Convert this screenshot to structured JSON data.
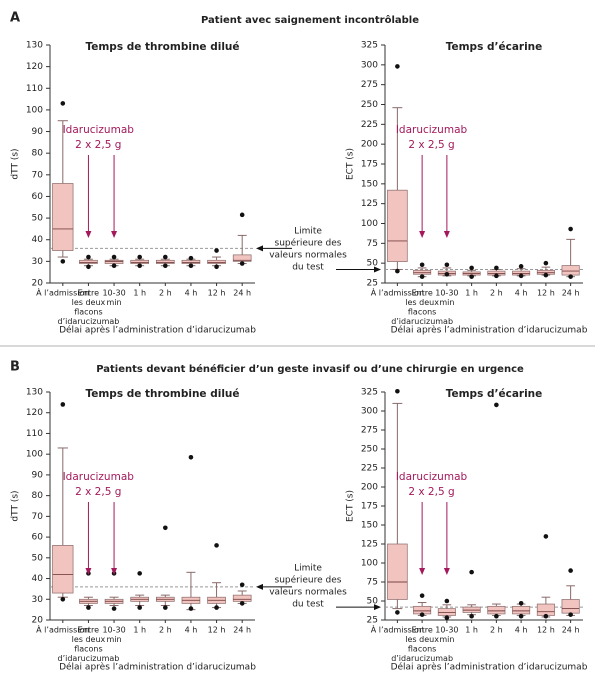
{
  "panels": [
    {
      "label": "A",
      "title": "Patient avec saignement incontrôlable",
      "note": [
        "Limite",
        "supérieure des",
        "valeurs normales",
        "du test"
      ]
    },
    {
      "label": "B",
      "title": "Patients devant bénéficier d’un geste invasif ou d’une chirurgie en urgence",
      "note": [
        "Limite",
        "supérieure des",
        "valeurs normales",
        "du test"
      ]
    }
  ],
  "chart_data": [
    {
      "type": "box",
      "title": "Temps de thrombine dilué",
      "ylabel": "dTT (s)",
      "xlabel": "Délai après l’administration d’idarucizumab",
      "annotation": [
        "Idarucizumab",
        "2 x 2,5 g"
      ],
      "categories": [
        [
          "À l’admission"
        ],
        [
          "Entre",
          "les deux",
          "flacons",
          "d’idarucizumab"
        ],
        [
          "10-30",
          "min"
        ],
        [
          "1 h"
        ],
        [
          "2 h"
        ],
        [
          "4 h"
        ],
        [
          "12 h"
        ],
        [
          "24 h"
        ]
      ],
      "whislo": [
        32,
        28,
        28,
        28,
        28,
        28,
        28,
        29
      ],
      "q1": [
        35,
        29,
        29,
        29,
        29,
        29,
        29,
        30
      ],
      "med": [
        45,
        29.5,
        30,
        29.5,
        29.5,
        29.5,
        29.5,
        30.5
      ],
      "q3": [
        66,
        30.5,
        30.5,
        30.5,
        30.5,
        30.5,
        30.5,
        33
      ],
      "whishi": [
        95,
        31,
        31,
        31,
        31,
        31,
        32,
        42
      ],
      "outliers": [
        [
          103,
          30
        ],
        [
          32,
          27.5
        ],
        [
          32,
          28
        ],
        [
          32,
          28
        ],
        [
          32,
          28
        ],
        [
          31.5,
          28
        ],
        [
          35,
          27.5
        ],
        [
          51.5,
          29
        ]
      ],
      "ylim": [
        20,
        130
      ],
      "yticks": [
        20,
        30,
        40,
        50,
        60,
        70,
        80,
        90,
        100,
        110,
        120,
        130
      ],
      "reference_line": 36,
      "color": "#f2c4c0"
    },
    {
      "type": "box",
      "title": "Temps d’écarine",
      "ylabel": "ECT (s)",
      "xlabel": "Délai après l’administration d’idarucizumab",
      "annotation": [
        "Idarucizumab",
        "2 x 2,5 g"
      ],
      "categories": [
        [
          "À l’admission"
        ],
        [
          "Entre",
          "les deux",
          "flacons",
          "d’idarucizumab"
        ],
        [
          "10-30",
          "min"
        ],
        [
          "1 h"
        ],
        [
          "2 h"
        ],
        [
          "4 h"
        ],
        [
          "12 h"
        ],
        [
          "24 h"
        ]
      ],
      "whislo": [
        42,
        33,
        34,
        34,
        34,
        34,
        35,
        33
      ],
      "q1": [
        52,
        36,
        35,
        35,
        35,
        35,
        36,
        35
      ],
      "med": [
        78,
        38,
        37,
        37,
        37,
        37,
        38,
        40
      ],
      "q3": [
        142,
        41,
        40,
        39,
        40,
        40,
        41,
        47
      ],
      "whishi": [
        246,
        44,
        44,
        41,
        42,
        43,
        45,
        80
      ],
      "outliers": [
        [
          298,
          40
        ],
        [
          48,
          33
        ],
        [
          48,
          36
        ],
        [
          44,
          33
        ],
        [
          44,
          34
        ],
        [
          46,
          34
        ],
        [
          50,
          35
        ],
        [
          93,
          33
        ]
      ],
      "ylim": [
        25,
        325
      ],
      "yticks": [
        25,
        50,
        75,
        100,
        125,
        150,
        175,
        200,
        225,
        250,
        275,
        300,
        325
      ],
      "reference_line": 42,
      "color": "#f2c4c0"
    },
    {
      "type": "box",
      "title": "Temps de thrombine dilué",
      "ylabel": "dTT (s)",
      "xlabel": "Délai après l’administration d’idarucizumab",
      "annotation": [
        "Idarucizumab",
        "2 x 2,5 g"
      ],
      "categories": [
        [
          "À l’admission"
        ],
        [
          "Entre",
          "les deux",
          "flacons",
          "d’idarucizumab"
        ],
        [
          "10-30",
          "min"
        ],
        [
          "1 h"
        ],
        [
          "2 h"
        ],
        [
          "4 h"
        ],
        [
          "12 h"
        ],
        [
          "24 h"
        ]
      ],
      "whislo": [
        31,
        27,
        27,
        27,
        27,
        25,
        26,
        28
      ],
      "q1": [
        33,
        28,
        28,
        29,
        29,
        28,
        28,
        29
      ],
      "med": [
        42,
        29,
        29,
        30,
        30,
        29.5,
        29.5,
        30
      ],
      "q3": [
        56,
        30,
        30,
        31,
        31,
        31,
        31,
        32
      ],
      "whishi": [
        103,
        31,
        31,
        32,
        32,
        43,
        38,
        34
      ],
      "outliers": [
        [
          124,
          30
        ],
        [
          42.5,
          26
        ],
        [
          42.5,
          25.5
        ],
        [
          42.5,
          26
        ],
        [
          64.5,
          26
        ],
        [
          98.5,
          25.5
        ],
        [
          56,
          26
        ],
        [
          37,
          28
        ]
      ],
      "ylim": [
        20,
        130
      ],
      "yticks": [
        20,
        30,
        40,
        50,
        60,
        70,
        80,
        90,
        100,
        110,
        120,
        130
      ],
      "reference_line": 36,
      "color": "#f2c4c0"
    },
    {
      "type": "box",
      "title": "Temps d’écarine",
      "ylabel": "ECT (s)",
      "xlabel": "Délai après l’administration d’idarucizumab",
      "annotation": [
        "Idarucizumab",
        "2 x 2,5 g"
      ],
      "categories": [
        [
          "À l’admission"
        ],
        [
          "Entre",
          "les deux",
          "flacons",
          "d’idarucizumab"
        ],
        [
          "10-30",
          "min"
        ],
        [
          "1 h"
        ],
        [
          "2 h"
        ],
        [
          "4 h"
        ],
        [
          "12 h"
        ],
        [
          "24 h"
        ]
      ],
      "whislo": [
        40,
        31,
        29,
        32,
        31,
        31,
        29,
        31
      ],
      "q1": [
        52,
        33,
        31,
        35,
        33,
        33,
        31,
        34
      ],
      "med": [
        75,
        37,
        35,
        38,
        37,
        37,
        36,
        40
      ],
      "q3": [
        125,
        43,
        40,
        42,
        43,
        43,
        46,
        52
      ],
      "whishi": [
        310,
        48,
        45,
        45,
        46,
        46,
        55,
        70
      ],
      "outliers": [
        [
          326,
          35
        ],
        [
          57,
          32
        ],
        [
          50,
          28
        ],
        [
          88,
          30
        ],
        [
          308,
          30
        ],
        [
          47,
          30
        ],
        [
          135,
          30
        ],
        [
          90,
          32
        ]
      ],
      "ylim": [
        25,
        325
      ],
      "yticks": [
        25,
        50,
        75,
        100,
        125,
        150,
        175,
        200,
        225,
        250,
        275,
        300,
        325
      ],
      "reference_line": 42,
      "color": "#f2c4c0"
    }
  ]
}
